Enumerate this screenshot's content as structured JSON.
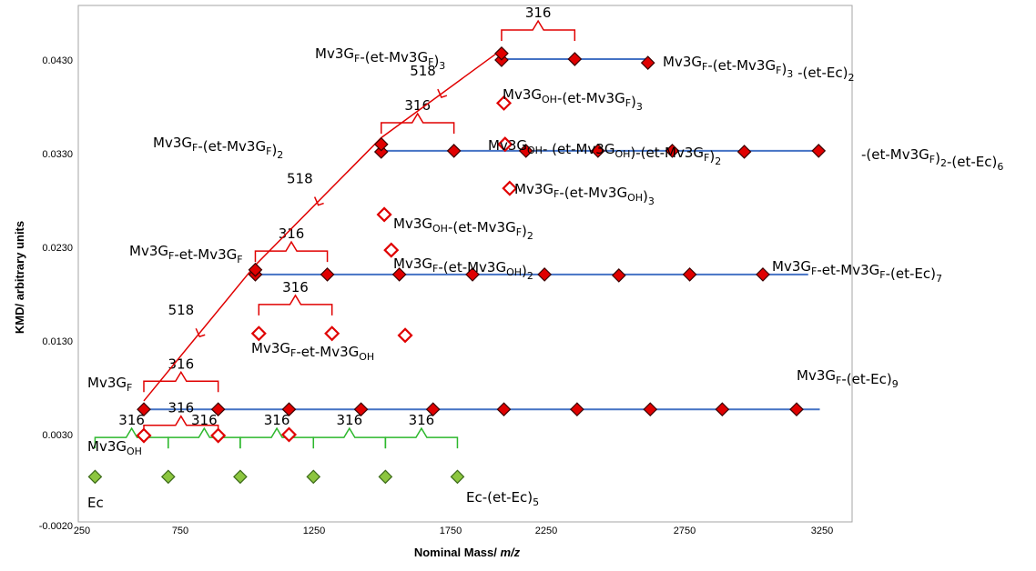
{
  "chart_data": {
    "type": "scatter",
    "xlabel": "Nominal Mass/",
    "xlabel_italic": "m/z",
    "ylabel": "KMD/ arbitrary units",
    "x_ticks": [
      "250",
      "750",
      "1250",
      "1750",
      "2250",
      "2750",
      "3250"
    ],
    "y_ticks": [
      "-0.0020",
      "0.0030",
      "0.0130",
      "0.0230",
      "0.0330",
      "0.0430"
    ],
    "xlim": [
      250,
      3550
    ],
    "ylim": [
      -0.002,
      0.048
    ],
    "grid": false,
    "legend": "none",
    "series": [
      {
        "kind": "filled",
        "color": "#e00000",
        "points": [
          [
            520,
            0.0057
          ],
          [
            840,
            0.0057
          ],
          [
            1145,
            0.0057
          ],
          [
            1455,
            0.0057
          ],
          [
            1765,
            0.0057
          ],
          [
            2070,
            0.0057
          ],
          [
            2385,
            0.0057
          ],
          [
            2700,
            0.0057
          ],
          [
            3010,
            0.0057
          ],
          [
            3330,
            0.0057
          ],
          [
            1000,
            0.0201
          ],
          [
            1000,
            0.0206
          ],
          [
            1310,
            0.0201
          ],
          [
            1620,
            0.0201
          ],
          [
            1935,
            0.0201
          ],
          [
            2245,
            0.0201
          ],
          [
            2565,
            0.02
          ],
          [
            2870,
            0.0201
          ],
          [
            3185,
            0.0201
          ],
          [
            1542,
            0.0332
          ],
          [
            1542,
            0.034
          ],
          [
            1855,
            0.0333
          ],
          [
            2165,
            0.0333
          ],
          [
            2475,
            0.0333
          ],
          [
            2795,
            0.0333
          ],
          [
            3105,
            0.0332
          ],
          [
            3425,
            0.0333
          ],
          [
            2060,
            0.043
          ],
          [
            2060,
            0.0437
          ],
          [
            2375,
            0.0431
          ],
          [
            2690,
            0.0427
          ]
        ]
      },
      {
        "kind": "open",
        "color": "#e00000",
        "points": [
          [
            520,
            0.0029
          ],
          [
            840,
            0.0029
          ],
          [
            1145,
            0.003
          ],
          [
            1015,
            0.0138
          ],
          [
            1330,
            0.0138
          ],
          [
            1645,
            0.0136
          ],
          [
            1555,
            0.0265
          ],
          [
            1585,
            0.0227
          ],
          [
            2095,
            0.0293
          ],
          [
            2075,
            0.034
          ],
          [
            2070,
            0.0384
          ]
        ]
      },
      {
        "kind": "green",
        "color": "#8cc63f",
        "points": [
          [
            310,
            -0.0015
          ],
          [
            625,
            -0.0015
          ],
          [
            935,
            -0.0015
          ],
          [
            1250,
            -0.0015
          ],
          [
            1560,
            -0.0015
          ],
          [
            1870,
            -0.0015
          ]
        ]
      }
    ],
    "reference_lines": [
      {
        "y": 0.0057,
        "x": [
          520,
          3430
        ]
      },
      {
        "y": 0.0201,
        "x": [
          1000,
          3380
        ]
      },
      {
        "y": 0.0333,
        "x": [
          1542,
          3440
        ]
      },
      {
        "y": 0.0431,
        "x": [
          2060,
          2700
        ]
      }
    ],
    "brackets": [
      {
        "color": "#e00000",
        "label": "316",
        "x1": 520,
        "x2": 840,
        "y": 0.0087
      },
      {
        "color": "#e00000",
        "label": "316",
        "x1": 520,
        "x2": 840,
        "y": 0.004
      },
      {
        "color": "#e00000",
        "label": "316",
        "x1": 1000,
        "x2": 1310,
        "y": 0.0226
      },
      {
        "color": "#e00000",
        "label": "316",
        "x1": 1015,
        "x2": 1330,
        "y": 0.0169
      },
      {
        "color": "#e00000",
        "label": "316",
        "x1": 1542,
        "x2": 1855,
        "y": 0.0363
      },
      {
        "color": "#e00000",
        "label": "316",
        "x1": 2060,
        "x2": 2375,
        "y": 0.0462
      },
      {
        "color": "#2db82d",
        "label": "316",
        "x1": 310,
        "x2": 625,
        "y": 0.0027
      },
      {
        "color": "#2db82d",
        "label": "316",
        "x1": 625,
        "x2": 935,
        "y": 0.0027
      },
      {
        "color": "#2db82d",
        "label": "316",
        "x1": 935,
        "x2": 1250,
        "y": 0.0027
      },
      {
        "color": "#2db82d",
        "label": "316",
        "x1": 1250,
        "x2": 1560,
        "y": 0.0027
      },
      {
        "color": "#2db82d",
        "label": "316",
        "x1": 1560,
        "x2": 1870,
        "y": 0.0027
      }
    ],
    "diagonal": {
      "color": "#e00000",
      "points": [
        [
          520,
          0.0066
        ],
        [
          1000,
          0.0211
        ],
        [
          1542,
          0.0347
        ],
        [
          2060,
          0.0441
        ]
      ],
      "labels": [
        "518",
        "518",
        "518"
      ]
    },
    "annotations": [
      {
        "text": "Mv3G",
        "sub": "F",
        "rest": ""
      },
      {
        "text": "Mv3G",
        "sub": "OH",
        "rest": ""
      },
      {
        "text": "Ec",
        "sub": "",
        "rest": ""
      },
      {
        "text": "Ec-(et-Ec)",
        "sub": "5",
        "rest": ""
      },
      {
        "text": "Mv3G",
        "sub": "F",
        "rest": "-(et-Ec)",
        "sub2": "9"
      },
      {
        "text": "Mv3G",
        "sub": "F",
        "rest": "-et-Mv3G",
        "sub2": "F"
      },
      {
        "text": "Mv3G",
        "sub": "F",
        "rest": "-et-Mv3G",
        "sub2": "OH"
      },
      {
        "text": "Mv3G",
        "sub": "F",
        "rest": "-et-Mv3G",
        "sub2": "F",
        "rest2": "-(et-Ec)",
        "sub3": "7"
      },
      {
        "text": "Mv3G",
        "sub": "F",
        "rest": "-(et-Mv3G",
        "sub2": "OH",
        "rest2": ")",
        "sub3": "2"
      },
      {
        "text": "Mv3G",
        "sub": "OH",
        "rest": "-(et-Mv3G",
        "sub2": "F",
        "rest2": ")",
        "sub3": "2"
      },
      {
        "text": "Mv3G",
        "sub": "F",
        "rest": "-(et-Mv3G",
        "sub2": "OH",
        "rest2": ")",
        "sub3": "3"
      },
      {
        "text": "Mv3G",
        "sub": "OH",
        "rest": "- (et-Mv3G",
        "sub2": "OH",
        "rest2": ")-(et-Mv3G",
        "sub3": "F",
        "rest3": ")",
        "sub4": "2"
      },
      {
        "text": "Mv3G",
        "sub": "F",
        "rest": "-(et-Mv3G",
        "sub2": "F",
        "rest2": ")",
        "sub3": "2"
      },
      {
        "text": "-(et-Mv3G",
        "sub": "F",
        "rest": ")",
        "sub2": "2",
        "rest2": "-(et-Ec)",
        "sub3": "6"
      },
      {
        "text": "Mv3G",
        "sub": "OH",
        "rest": "-(et-Mv3G",
        "sub2": "F",
        "rest2": ")",
        "sub3": "3"
      },
      {
        "text": "Mv3G",
        "sub": "F",
        "rest": "-(et-Mv3G",
        "sub2": "F",
        "rest2": ")",
        "sub3": "3"
      },
      {
        "text": "Mv3G",
        "sub": "F",
        "rest": "-(et-Mv3G",
        "sub2": "F",
        "rest2": ")",
        "sub3": "3",
        "rest3": " -(et-Ec)",
        "sub4": "2"
      }
    ]
  }
}
